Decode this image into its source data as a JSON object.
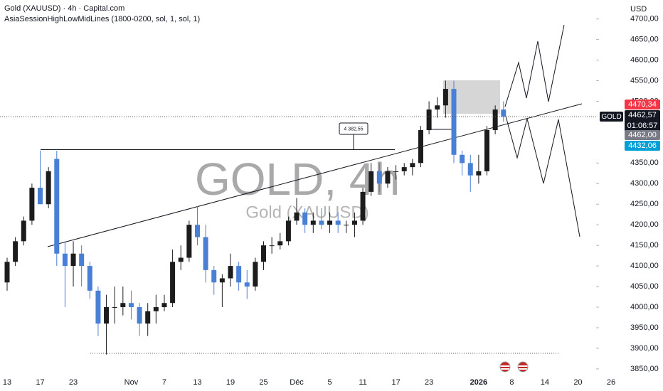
{
  "chart_data": {
    "type": "candlestick",
    "title": "Gold (XAUUSD) · 4h · Capital.com",
    "subtitle": "AsiaSessionHighLowMidLines (1800-0200, sol, 1, sol, 1)",
    "watermark": "GOLD, 4h",
    "watermark_subtitle": "Gold (XAUUSD)",
    "currency": "USD",
    "symbol": "GOLD",
    "countdown": "01:06:57",
    "up_color": "#1c1c1c",
    "down_color": "#4a7fd6",
    "x": [
      0,
      1,
      2,
      3,
      4,
      5,
      6,
      7,
      8,
      9,
      10,
      11,
      12,
      13,
      14,
      15,
      16,
      17,
      18,
      19,
      20,
      21,
      22,
      23,
      24,
      25,
      26,
      27,
      28,
      29,
      30,
      31,
      32,
      33,
      34,
      35,
      36,
      37,
      38,
      39,
      40,
      41,
      42,
      43,
      44,
      45,
      46,
      47,
      48,
      49,
      50,
      51,
      52,
      53,
      54,
      55,
      56,
      57,
      58,
      59,
      60
    ],
    "open": [
      4060,
      4110,
      4160,
      4210,
      4290,
      4250,
      4360,
      4130,
      4100,
      4130,
      4100,
      4040,
      3960,
      4000,
      4000,
      4010,
      4000,
      3960,
      3990,
      4000,
      4010,
      4110,
      4120,
      4200,
      4170,
      4090,
      4060,
      4070,
      4100,
      4060,
      4050,
      4110,
      4150,
      4150,
      4160,
      4210,
      4230,
      4200,
      4210,
      4200,
      4210,
      4200,
      4200,
      4210,
      4280,
      4330,
      4300,
      4330,
      4330,
      4340,
      4350,
      4430,
      4480,
      4490,
      4530,
      4370,
      4350,
      4320,
      4330,
      4430,
      4480
    ],
    "high": [
      4120,
      4170,
      4220,
      4300,
      4380,
      4340,
      4380,
      4160,
      4160,
      4150,
      4110,
      4050,
      4030,
      4050,
      4050,
      4040,
      4010,
      4010,
      4030,
      4030,
      4140,
      4150,
      4210,
      4245,
      4200,
      4100,
      4080,
      4130,
      4110,
      4090,
      4120,
      4160,
      4170,
      4180,
      4220,
      4265,
      4240,
      4230,
      4240,
      4230,
      4230,
      4210,
      4230,
      4290,
      4350,
      4350,
      4340,
      4345,
      4350,
      4360,
      4440,
      4500,
      4510,
      4550,
      4550,
      4380,
      4370,
      4370,
      4440,
      4490,
      4500
    ],
    "low": [
      4040,
      4100,
      4150,
      4200,
      4250,
      4240,
      4100,
      4000,
      4050,
      4050,
      4020,
      3930,
      3885,
      3960,
      3980,
      3970,
      3930,
      3930,
      3960,
      3990,
      4000,
      4090,
      4110,
      4150,
      4060,
      4030,
      4000,
      4050,
      4040,
      4020,
      4040,
      4090,
      4130,
      4140,
      4150,
      4200,
      4180,
      4180,
      4190,
      4180,
      4180,
      4180,
      4170,
      4200,
      4270,
      4280,
      4290,
      4310,
      4320,
      4320,
      4340,
      4420,
      4460,
      4460,
      4350,
      4320,
      4280,
      4300,
      4320,
      4420,
      4450
    ],
    "close": [
      4110,
      4160,
      4210,
      4290,
      4250,
      4330,
      4130,
      4100,
      4130,
      4100,
      4040,
      3960,
      4000,
      4000,
      4010,
      4000,
      3960,
      3990,
      4000,
      4010,
      4110,
      4120,
      4200,
      4170,
      4090,
      4060,
      4070,
      4100,
      4060,
      4050,
      4110,
      4150,
      4150,
      4160,
      4210,
      4230,
      4200,
      4210,
      4200,
      4210,
      4200,
      4200,
      4210,
      4280,
      4330,
      4300,
      4330,
      4330,
      4340,
      4350,
      4430,
      4480,
      4490,
      4530,
      4370,
      4350,
      4320,
      4330,
      4430,
      4480,
      4462.57
    ],
    "xlim": [
      -0.86,
      79.28
    ],
    "ylim": [
      3836,
      4746
    ],
    "xticks": [
      {
        "value": 0,
        "label": "13"
      },
      {
        "value": 4,
        "label": "17"
      },
      {
        "value": 8,
        "label": "23"
      },
      {
        "value": 15,
        "label": "Nov"
      },
      {
        "value": 19,
        "label": "7"
      },
      {
        "value": 23,
        "label": "13"
      },
      {
        "value": 27,
        "label": "19"
      },
      {
        "value": 31,
        "label": "25"
      },
      {
        "value": 35,
        "label": "Déc"
      },
      {
        "value": 39,
        "label": "5"
      },
      {
        "value": 43,
        "label": "11"
      },
      {
        "value": 47,
        "label": "17"
      },
      {
        "value": 51,
        "label": "23"
      },
      {
        "value": 57,
        "label": "2026"
      },
      {
        "value": 61,
        "label": "8"
      },
      {
        "value": 65,
        "label": "14"
      },
      {
        "value": 69,
        "label": "20"
      },
      {
        "value": 73,
        "label": "26"
      }
    ],
    "yticks": [
      {
        "value": 4700,
        "label": "4700,00"
      },
      {
        "value": 4650,
        "label": "4650,00"
      },
      {
        "value": 4600,
        "label": "4600,00"
      },
      {
        "value": 4550,
        "label": "4550,00"
      },
      {
        "value": 4500,
        "label": "4500,00"
      },
      {
        "value": 4350,
        "label": "4350,00"
      },
      {
        "value": 4300,
        "label": "4300,00"
      },
      {
        "value": 4250,
        "label": "4250,00"
      },
      {
        "value": 4200,
        "label": "4200,00"
      },
      {
        "value": 4150,
        "label": "4150,00"
      },
      {
        "value": 4100,
        "label": "4100,00"
      },
      {
        "value": 4050,
        "label": "4050,00"
      },
      {
        "value": 4000,
        "label": "4000,00"
      },
      {
        "value": 3950,
        "label": "3950,00"
      },
      {
        "value": 3900,
        "label": "3900,00"
      },
      {
        "value": 3850,
        "label": "3850,00"
      }
    ],
    "price_line": {
      "value": 4382.55,
      "label": "4 382,55"
    },
    "price_levels": [
      {
        "value": 4470.34,
        "label": "4470,34",
        "color": "#f23645"
      },
      {
        "value": 4462.57,
        "label": "4462,57",
        "color": "#131722"
      },
      {
        "value": 4462.0,
        "label": "4462,00",
        "color": "#787b86"
      },
      {
        "value": 4432.06,
        "label": "4432,06",
        "color": "#00a0d6"
      }
    ]
  }
}
